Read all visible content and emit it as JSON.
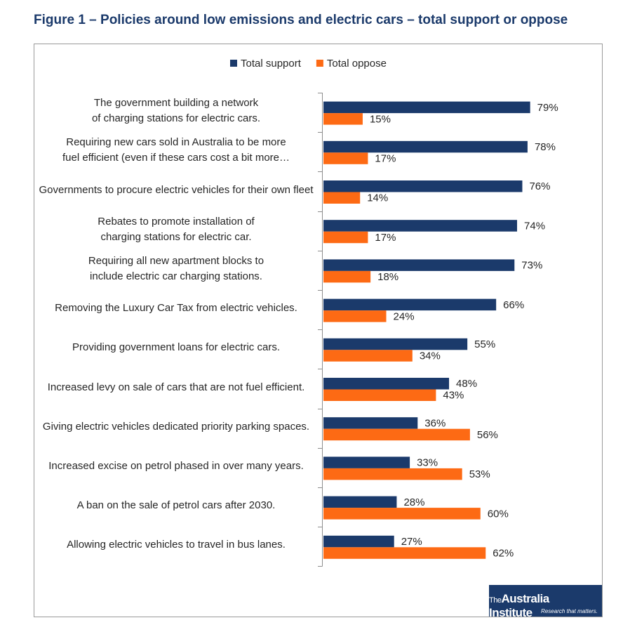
{
  "chart_data": {
    "type": "hbar",
    "title": "Figure 1 – Policies around low emissions and electric cars – total support or oppose",
    "categories": [
      "The government building a network of charging stations for electric cars.",
      "Requiring new cars sold in Australia to be more fuel efficient (even if these cars cost a bit more…",
      "Governments to procure electric vehicles for their own fleet",
      "Rebates to promote installation of charging stations for electric car.",
      "Requiring all new apartment blocks to include electric car charging stations.",
      "Removing the Luxury Car Tax from electric vehicles.",
      "Providing government loans for electric cars.",
      "Increased levy on sale of cars that are not fuel efficient.",
      "Giving electric vehicles dedicated priority parking spaces.",
      "Increased excise on petrol phased in over many years.",
      "A ban on the sale of petrol cars after 2030.",
      "Allowing electric vehicles to travel in bus lanes."
    ],
    "series": [
      {
        "name": "Total support",
        "color": "#1b3a6b",
        "values": [
          79,
          78,
          76,
          74,
          73,
          66,
          55,
          48,
          36,
          33,
          28,
          27
        ],
        "value_labels": [
          "79%",
          "78%",
          "76%",
          "74%",
          "73%",
          "66%",
          "55%",
          "48%",
          "36%",
          "33%",
          "28%",
          "27%"
        ]
      },
      {
        "name": "Total oppose",
        "color": "#fd6a14",
        "values": [
          15,
          17,
          14,
          17,
          18,
          24,
          34,
          43,
          56,
          53,
          60,
          62
        ],
        "value_labels": [
          "15%",
          "17%",
          "14%",
          "17%",
          "18%",
          "24%",
          "34%",
          "43%",
          "56%",
          "53%",
          "60%",
          "62%"
        ]
      }
    ],
    "xlim": [
      0,
      100
    ],
    "legend": "top"
  },
  "logo": {
    "prefix": "The",
    "name": "Australia Institute",
    "tagline": "Research that matters."
  }
}
